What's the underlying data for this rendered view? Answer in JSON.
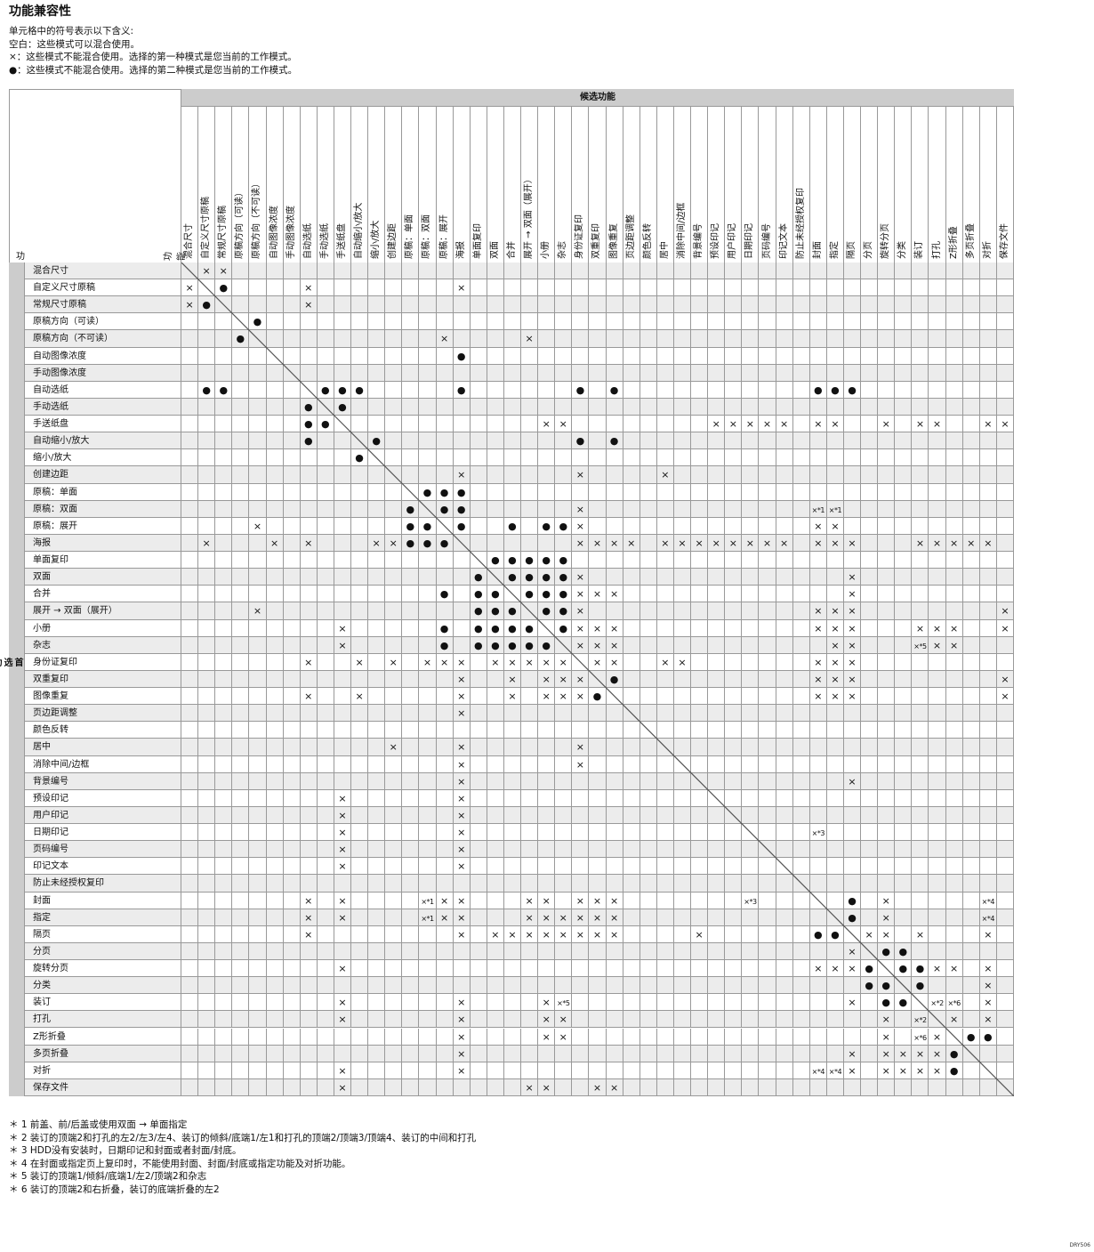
{
  "title": "功能兼容性",
  "legend": [
    "单元格中的符号表示以下含义:",
    "空白：这些模式可以混合使用。",
    "×：这些模式不能混合使用。选择的第一种模式是您当前的工作模式。",
    "●：这些模式不能混合使用。选择的第二种模式是您当前的工作模式。"
  ],
  "table": {
    "candidate_header": "候选功能",
    "function_label": "功能",
    "function_label_vertical": "功能",
    "preferred_label": "首选功能",
    "features": [
      "混合尺寸",
      "自定义尺寸原稿",
      "常规尺寸原稿",
      "原稿方向（可读）",
      "原稿方向（不可读）",
      "自动图像浓度",
      "手动图像浓度",
      "自动选纸",
      "手动选纸",
      "手送纸盘",
      "自动缩小/放大",
      "缩小/放大",
      "创建边距",
      "原稿：单面",
      "原稿：双面",
      "原稿：展开",
      "海报",
      "单面复印",
      "双面",
      "合并",
      "展开 → 双面（展开）",
      "小册",
      "杂志",
      "身份证复印",
      "双重复印",
      "图像重复",
      "页边距调整",
      "颜色反转",
      "居中",
      "消除中间/边框",
      "背景编号",
      "预设印记",
      "用户印记",
      "日期印记",
      "页码编号",
      "印记文本",
      "防止未经授权复印",
      "封面",
      "指定",
      "隔页",
      "分页",
      "旋转分页",
      "分类",
      "装订",
      "打孔",
      "Z形折叠",
      "多页折叠",
      "对折",
      "保存文件"
    ],
    "rows": [
      {
        "2": "×",
        "3": "×"
      },
      {
        "1": "×",
        "3": "●",
        "8": "×",
        "17": "×"
      },
      {
        "1": "×",
        "2": "●",
        "8": "×"
      },
      {
        "5": "●"
      },
      {
        "4": "●",
        "16": "×",
        "21": "×"
      },
      {
        "17": "●"
      },
      {},
      {
        "2": "●",
        "3": "●",
        "9": "●",
        "10": "●",
        "11": "●",
        "17": "●",
        "24": "●",
        "26": "●",
        "38": "●",
        "39": "●",
        "40": "●"
      },
      {
        "8": "●",
        "10": "●"
      },
      {
        "8": "●",
        "9": "●",
        "22": "×",
        "23": "×",
        "32": "×",
        "33": "×",
        "34": "×",
        "35": "×",
        "36": "×",
        "38": "×",
        "39": "×",
        "42": "×",
        "44": "×",
        "45": "×",
        "48": "×",
        "49": "×"
      },
      {
        "8": "●",
        "12": "●",
        "24": "●",
        "26": "●"
      },
      {
        "11": "●"
      },
      {
        "17": "×",
        "24": "×",
        "29": "×"
      },
      {
        "15": "●",
        "16": "●",
        "17": "●"
      },
      {
        "14": "●",
        "16": "●",
        "17": "●",
        "24": "×",
        "38": "×*1",
        "39": "×*1"
      },
      {
        "5": "×",
        "14": "●",
        "15": "●",
        "17": "●",
        "20": "●",
        "22": "●",
        "23": "●",
        "24": "×",
        "38": "×",
        "39": "×"
      },
      {
        "2": "×",
        "6": "×",
        "8": "×",
        "12": "×",
        "13": "×",
        "14": "●",
        "15": "●",
        "16": "●",
        "24": "×",
        "25": "×",
        "26": "×",
        "27": "×",
        "29": "×",
        "30": "×",
        "31": "×",
        "32": "×",
        "33": "×",
        "34": "×",
        "35": "×",
        "36": "×",
        "38": "×",
        "39": "×",
        "40": "×",
        "44": "×",
        "45": "×",
        "46": "×",
        "47": "×",
        "48": "×"
      },
      {
        "19": "●",
        "20": "●",
        "21": "●",
        "22": "●",
        "23": "●"
      },
      {
        "18": "●",
        "20": "●",
        "21": "●",
        "22": "●",
        "23": "●",
        "24": "×",
        "40": "×"
      },
      {
        "16": "●",
        "18": "●",
        "19": "●",
        "21": "●",
        "22": "●",
        "23": "●",
        "24": "×",
        "25": "×",
        "26": "×",
        "40": "×"
      },
      {
        "5": "×",
        "18": "●",
        "19": "●",
        "20": "●",
        "22": "●",
        "23": "●",
        "24": "×",
        "38": "×",
        "39": "×",
        "40": "×",
        "49": "×"
      },
      {
        "10": "×",
        "16": "●",
        "18": "●",
        "19": "●",
        "20": "●",
        "21": "●",
        "23": "●",
        "24": "×",
        "25": "×",
        "26": "×",
        "38": "×",
        "39": "×",
        "40": "×",
        "44": "×",
        "45": "×",
        "46": "×",
        "49": "×"
      },
      {
        "10": "×",
        "16": "●",
        "18": "●",
        "19": "●",
        "20": "●",
        "21": "●",
        "22": "●",
        "24": "×",
        "25": "×",
        "26": "×",
        "39": "×",
        "40": "×",
        "44": "×*5",
        "45": "×",
        "46": "×"
      },
      {
        "8": "×",
        "11": "×",
        "13": "×",
        "15": "×",
        "16": "×",
        "17": "×",
        "19": "×",
        "20": "×",
        "21": "×",
        "22": "×",
        "23": "×",
        "25": "×",
        "26": "×",
        "29": "×",
        "30": "×",
        "38": "×",
        "39": "×",
        "40": "×"
      },
      {
        "17": "×",
        "20": "×",
        "22": "×",
        "23": "×",
        "24": "×",
        "26": "●",
        "38": "×",
        "39": "×",
        "40": "×",
        "49": "×"
      },
      {
        "8": "×",
        "11": "×",
        "17": "×",
        "20": "×",
        "22": "×",
        "23": "×",
        "24": "×",
        "25": "●",
        "38": "×",
        "39": "×",
        "40": "×",
        "49": "×"
      },
      {
        "17": "×"
      },
      {},
      {
        "13": "×",
        "17": "×",
        "24": "×"
      },
      {
        "17": "×",
        "24": "×"
      },
      {
        "17": "×",
        "40": "×"
      },
      {
        "10": "×",
        "17": "×"
      },
      {
        "10": "×",
        "17": "×"
      },
      {
        "10": "×",
        "17": "×",
        "38": "×*3"
      },
      {
        "10": "×",
        "17": "×"
      },
      {
        "10": "×",
        "17": "×"
      },
      {},
      {
        "8": "×",
        "10": "×",
        "15": "×*1",
        "16": "×",
        "17": "×",
        "21": "×",
        "22": "×",
        "24": "×",
        "25": "×",
        "26": "×",
        "34": "×*3",
        "40": "●",
        "42": "×",
        "48": "×*4"
      },
      {
        "8": "×",
        "10": "×",
        "15": "×*1",
        "16": "×",
        "17": "×",
        "21": "×",
        "22": "×",
        "23": "×",
        "24": "×",
        "25": "×",
        "26": "×",
        "40": "●",
        "42": "×",
        "48": "×*4"
      },
      {
        "8": "×",
        "17": "×",
        "19": "×",
        "20": "×",
        "21": "×",
        "22": "×",
        "23": "×",
        "24": "×",
        "25": "×",
        "26": "×",
        "31": "×",
        "38": "●",
        "39": "●",
        "41": "×",
        "42": "×",
        "44": "×",
        "48": "×"
      },
      {
        "40": "×",
        "42": "●",
        "43": "●"
      },
      {
        "10": "×",
        "38": "×",
        "39": "×",
        "40": "×",
        "41": "●",
        "43": "●",
        "44": "●",
        "45": "×",
        "46": "×",
        "48": "×"
      },
      {
        "41": "●",
        "42": "●",
        "44": "●",
        "48": "×"
      },
      {
        "10": "×",
        "17": "×",
        "22": "×",
        "23": "×*5",
        "40": "×",
        "42": "●",
        "43": "●",
        "45": "×*2",
        "46": "×*6",
        "48": "×"
      },
      {
        "10": "×",
        "17": "×",
        "22": "×",
        "23": "×",
        "42": "×",
        "44": "×*2",
        "46": "×",
        "48": "×"
      },
      {
        "17": "×",
        "22": "×",
        "23": "×",
        "42": "×",
        "44": "×*6",
        "45": "×",
        "47": "●",
        "48": "●"
      },
      {
        "17": "×",
        "40": "×",
        "42": "×",
        "43": "×",
        "44": "×",
        "45": "×",
        "46": "●"
      },
      {
        "10": "×",
        "17": "×",
        "38": "×*4",
        "39": "×*4",
        "40": "×",
        "42": "×",
        "43": "×",
        "44": "×",
        "45": "×",
        "46": "●"
      },
      {
        "10": "×",
        "21": "×",
        "22": "×",
        "25": "×",
        "26": "×"
      }
    ]
  },
  "footnotes": [
    "＊ 1 前盖、前/后盖或使用双面 → 单面指定",
    "＊ 2 装订的顶端2和打孔的左2/左3/左4、装订的倾斜/底端1/左1和打孔的顶端2/顶端3/顶端4、装订的中间和打孔",
    "＊ 3 HDD没有安装时，日期印记和封面或者封面/封底。",
    "＊ 4 在封面或指定页上复印时，不能使用封面、封面/封底或指定功能及对折功能。",
    "＊ 5 装订的顶端1/倾斜/底端1/左2/顶端2和杂志",
    "＊ 6 装订的顶端2和右折叠，装订的底端折叠的左2"
  ],
  "figure_code": "DRY506",
  "colors": {
    "header_bg": "#cccccc",
    "shade": "#ececec",
    "grid": "#999999"
  }
}
